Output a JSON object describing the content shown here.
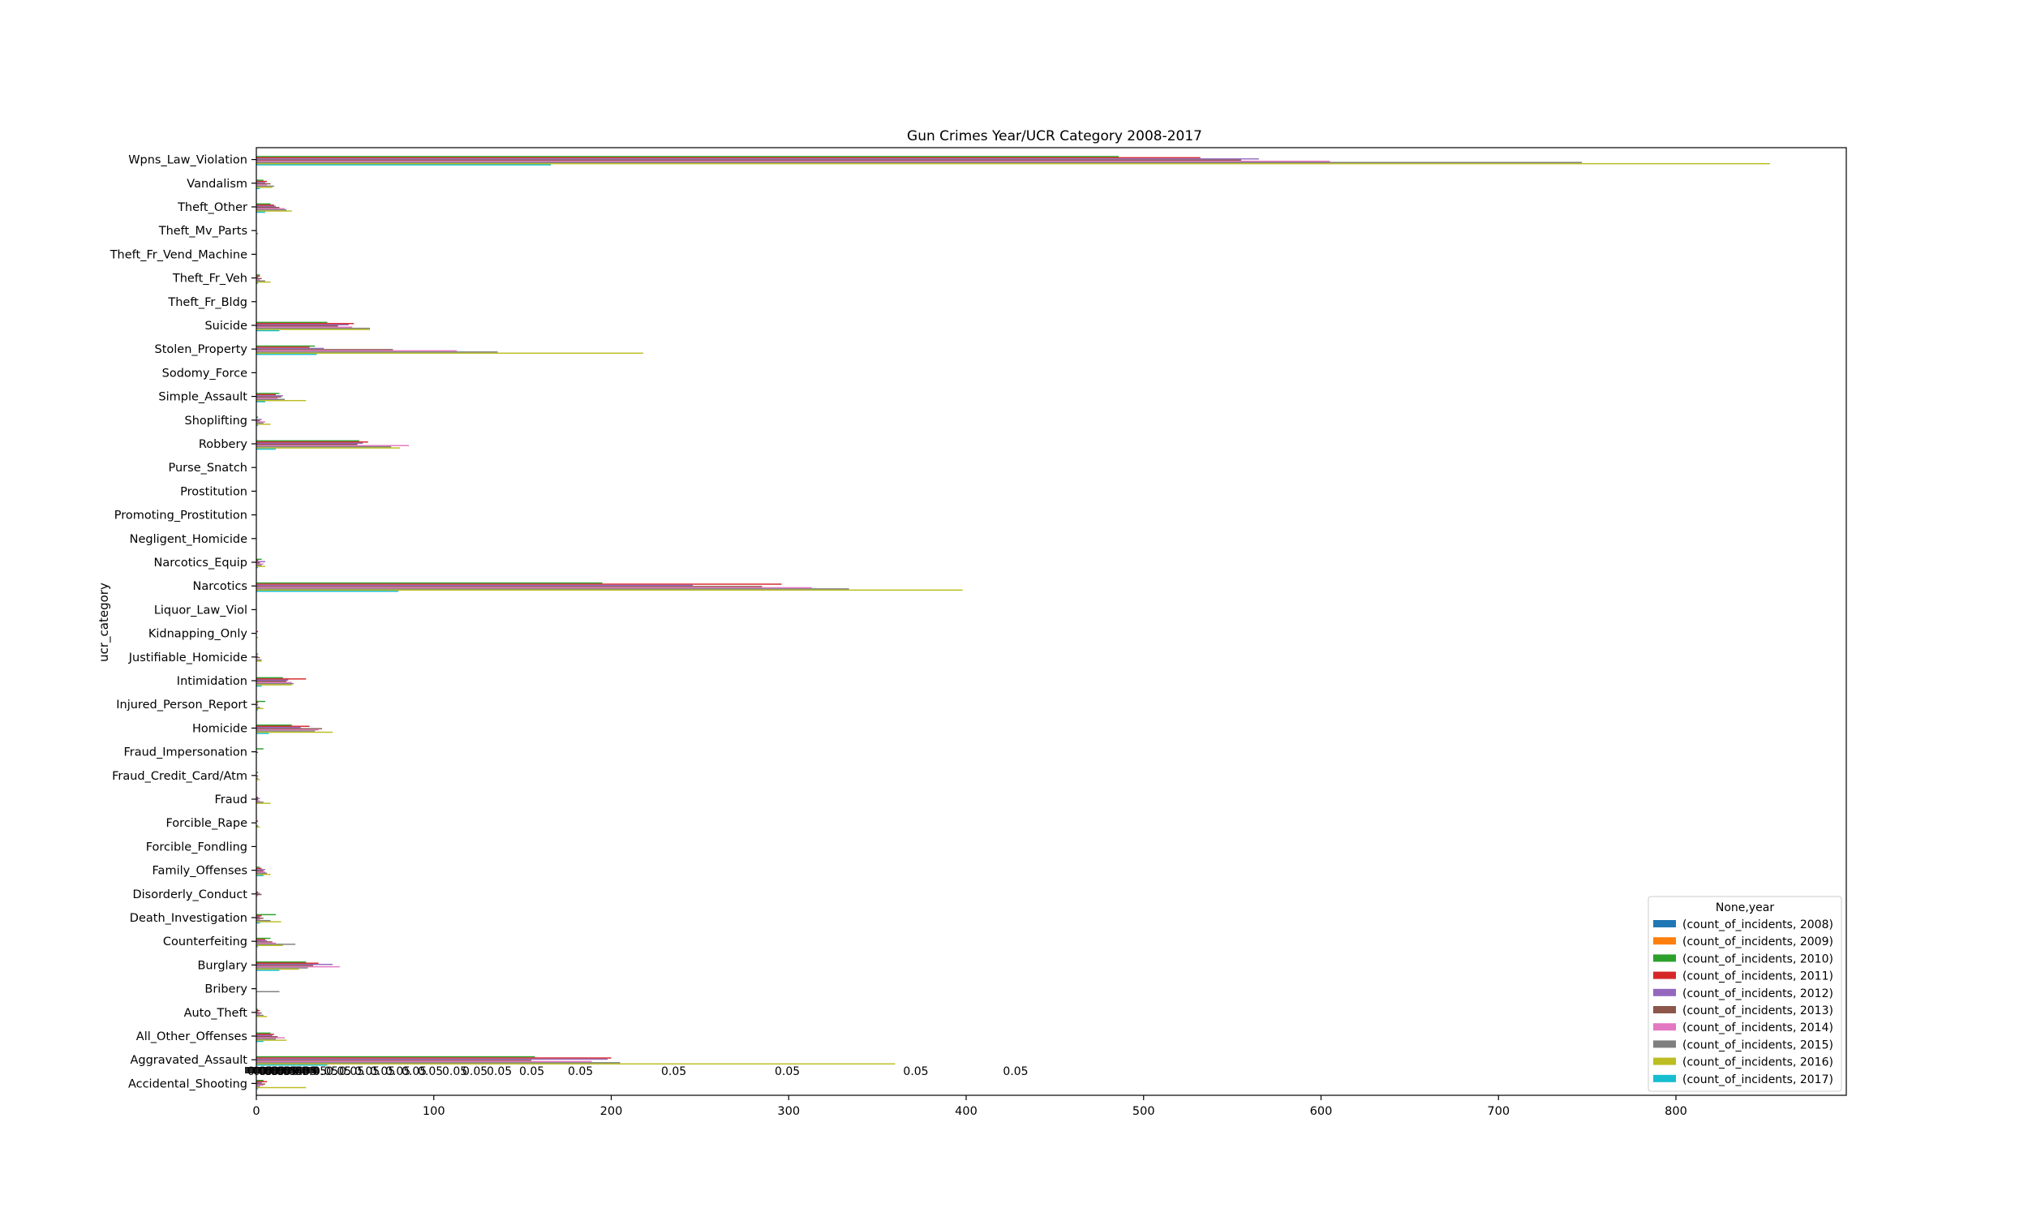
{
  "chart_data": {
    "type": "bar",
    "orientation": "horizontal",
    "title": "Gun Crimes Year/UCR Category 2008-2017",
    "xlabel": "",
    "ylabel": "ucr_category",
    "xlim": [
      0,
      895
    ],
    "xticks": [
      0,
      100,
      200,
      300,
      400,
      500,
      600,
      700,
      800
    ],
    "legend_title": "None,year",
    "legend_position": "lower right",
    "grid": false,
    "categories": [
      "Accidental_Shooting",
      "Aggravated_Assault",
      "All_Other_Offenses",
      "Auto_Theft",
      "Bribery",
      "Burglary",
      "Counterfeiting",
      "Death_Investigation",
      "Disorderly_Conduct",
      "Family_Offenses",
      "Forcible_Fondling",
      "Forcible_Rape",
      "Fraud",
      "Fraud_Credit_Card/Atm",
      "Fraud_Impersonation",
      "Homicide",
      "Injured_Person_Report",
      "Intimidation",
      "Justifiable_Homicide",
      "Kidnapping_Only",
      "Liquor_Law_Viol",
      "Narcotics",
      "Narcotics_Equip",
      "Negligent_Homicide",
      "Promoting_Prostitution",
      "Prostitution",
      "Purse_Snatch",
      "Robbery",
      "Shoplifting",
      "Simple_Assault",
      "Sodomy_Force",
      "Stolen_Property",
      "Suicide",
      "Theft_Fr_Bldg",
      "Theft_Fr_Veh",
      "Theft_Fr_Vend_Machine",
      "Theft_Mv_Parts",
      "Theft_Other",
      "Vandalism",
      "Wpns_Law_Violation"
    ],
    "series": [
      {
        "name": "(count_of_incidents, 2008)",
        "color": "#1f77b4",
        "values": [
          0,
          0,
          0,
          0,
          0,
          0,
          0,
          0,
          0,
          0,
          0,
          0,
          0,
          0,
          0,
          0,
          0,
          0,
          0,
          0,
          0,
          0,
          0,
          0,
          0,
          0,
          0,
          0,
          0,
          0,
          0,
          0,
          0,
          0,
          0,
          0,
          0,
          0,
          0,
          0
        ]
      },
      {
        "name": "(count_of_incidents, 2009)",
        "color": "#ff7f0e",
        "values": [
          0,
          0,
          0,
          0,
          0,
          0,
          0,
          0,
          0,
          0,
          0,
          0,
          0,
          0,
          0,
          0,
          0,
          0,
          0,
          0,
          0,
          0,
          0,
          0,
          0,
          0,
          0,
          0,
          0,
          0,
          0,
          0,
          0,
          0,
          0,
          0,
          0,
          0,
          0,
          0
        ]
      },
      {
        "name": "(count_of_incidents, 2010)",
        "color": "#2ca02c",
        "values": [
          4,
          157,
          8,
          1,
          0,
          28,
          8,
          11,
          0,
          2,
          0,
          0,
          0,
          1,
          4,
          20,
          5,
          15,
          1,
          0,
          0,
          195,
          3,
          0,
          0,
          0,
          0,
          58,
          1,
          13,
          0,
          33,
          40,
          0,
          2,
          0,
          0,
          8,
          4,
          486
        ]
      },
      {
        "name": "(count_of_incidents, 2011)",
        "color": "#d62728",
        "values": [
          6,
          200,
          10,
          2,
          0,
          35,
          5,
          3,
          1,
          3,
          0,
          1,
          1,
          0,
          0,
          30,
          1,
          28,
          0,
          1,
          0,
          296,
          1,
          0,
          0,
          0,
          0,
          63,
          0,
          11,
          0,
          30,
          55,
          0,
          2,
          0,
          0,
          10,
          6,
          532
        ]
      },
      {
        "name": "(count_of_incidents, 2012)",
        "color": "#9467bd",
        "values": [
          3,
          198,
          9,
          1,
          0,
          43,
          6,
          2,
          2,
          5,
          0,
          0,
          2,
          0,
          0,
          25,
          0,
          18,
          1,
          0,
          0,
          246,
          5,
          0,
          0,
          0,
          0,
          60,
          3,
          15,
          0,
          38,
          52,
          0,
          1,
          0,
          0,
          11,
          5,
          565
        ]
      },
      {
        "name": "(count_of_incidents, 2013)",
        "color": "#8c564b",
        "values": [
          5,
          155,
          12,
          3,
          0,
          32,
          9,
          4,
          3,
          4,
          0,
          0,
          1,
          1,
          1,
          37,
          1,
          17,
          2,
          0,
          0,
          285,
          2,
          0,
          0,
          0,
          0,
          57,
          2,
          14,
          0,
          77,
          46,
          0,
          3,
          0,
          0,
          13,
          8,
          555
        ]
      },
      {
        "name": "(count_of_incidents, 2014)",
        "color": "#e377c2",
        "values": [
          4,
          189,
          16,
          2,
          0,
          47,
          11,
          2,
          1,
          5,
          0,
          0,
          2,
          0,
          0,
          35,
          0,
          20,
          0,
          0,
          0,
          313,
          4,
          0,
          0,
          0,
          0,
          86,
          5,
          12,
          0,
          113,
          54,
          0,
          2,
          0,
          0,
          16,
          6,
          605
        ]
      },
      {
        "name": "(count_of_incidents, 2015)",
        "color": "#7f7f7f",
        "values": [
          2,
          205,
          11,
          4,
          13,
          29,
          22,
          8,
          0,
          6,
          0,
          1,
          4,
          1,
          0,
          33,
          2,
          21,
          3,
          0,
          0,
          334,
          3,
          0,
          0,
          0,
          0,
          76,
          4,
          16,
          0,
          136,
          64,
          0,
          5,
          0,
          1,
          17,
          10,
          747
        ]
      },
      {
        "name": "(count_of_incidents, 2016)",
        "color": "#bcbd22",
        "values": [
          28,
          360,
          17,
          6,
          0,
          24,
          15,
          14,
          0,
          8,
          0,
          2,
          8,
          2,
          0,
          43,
          4,
          20,
          3,
          1,
          0,
          398,
          5,
          0,
          0,
          0,
          0,
          81,
          8,
          28,
          0,
          218,
          64,
          0,
          8,
          0,
          0,
          20,
          9,
          853
        ]
      },
      {
        "name": "(count_of_incidents, 2017)",
        "color": "#17becf",
        "values": [
          1,
          40,
          4,
          0,
          0,
          13,
          1,
          2,
          0,
          4,
          0,
          0,
          0,
          0,
          0,
          7,
          1,
          3,
          0,
          0,
          0,
          80,
          1,
          0,
          0,
          0,
          0,
          11,
          1,
          5,
          0,
          34,
          13,
          0,
          1,
          0,
          0,
          5,
          2,
          166
        ]
      }
    ],
    "stray_annotations": [
      "0.05",
      "0.05",
      "0.05",
      "0.05",
      "0.05",
      "0.05",
      "0.05",
      "0.05",
      "0.05",
      "0.05",
      "0.05",
      "0.05",
      "0.05",
      "0.05",
      "0.05",
      "0.05",
      "0.05",
      "0.05",
      "0.05",
      "0.05",
      "0.05",
      "0.05",
      "0.05",
      "0.05"
    ]
  }
}
